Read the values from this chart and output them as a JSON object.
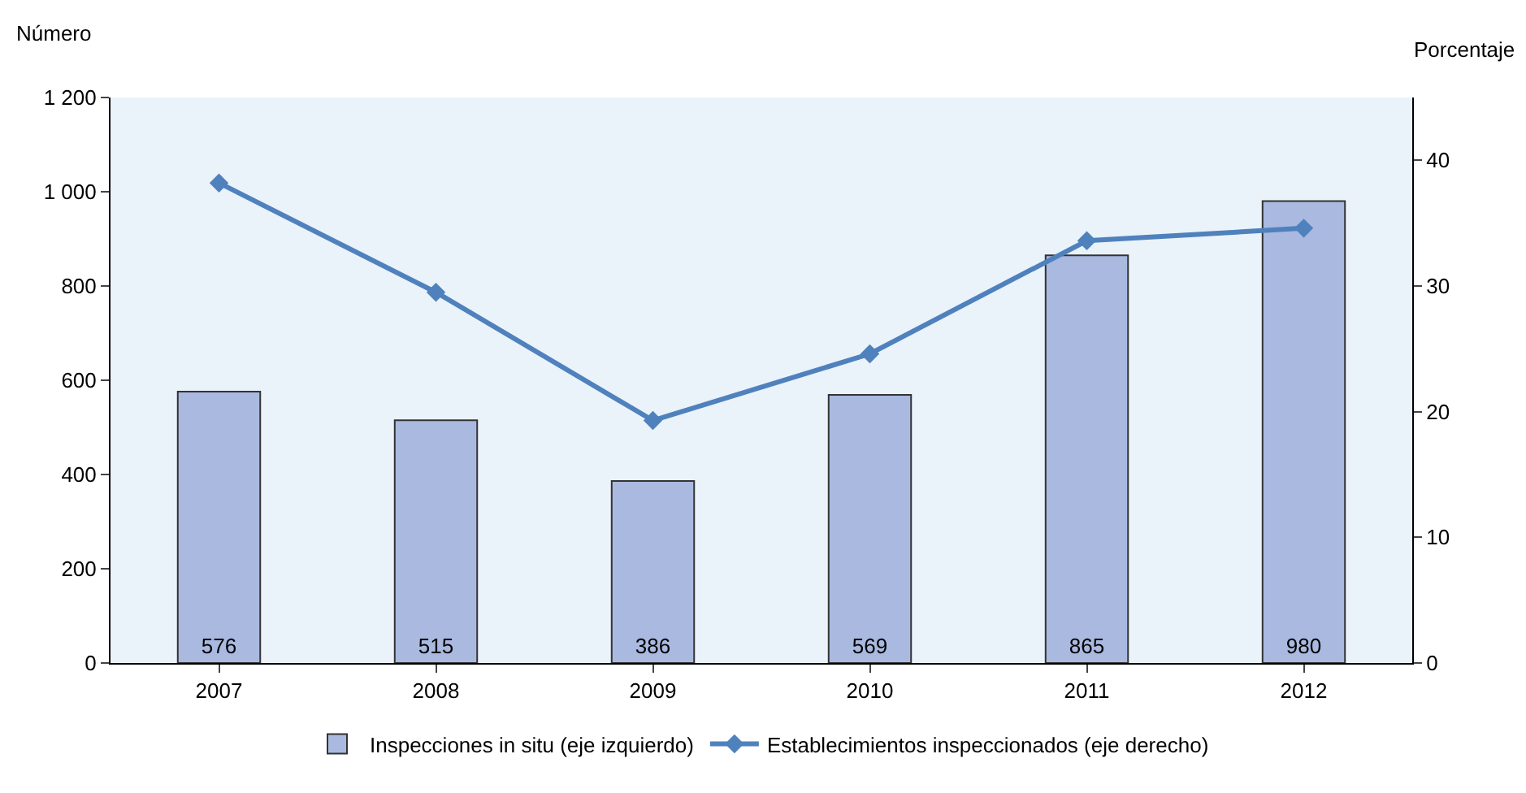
{
  "chart_data": {
    "type": "bar",
    "ylabel": "Número",
    "y2label": "Porcentaje",
    "categories": [
      "2007",
      "2008",
      "2009",
      "2010",
      "2011",
      "2012"
    ],
    "series": [
      {
        "name": "Inspecciones in situ (eje izquierdo)",
        "color": "#a9b9e0",
        "values": [
          576,
          515,
          386,
          569,
          865,
          980
        ],
        "value_labels": [
          "576",
          "515",
          "386",
          "569",
          "865",
          "980"
        ]
      },
      {
        "name": "Establecimientos inspeccionados (eje derecho)",
        "type": "line",
        "axis": "y2",
        "color": "#4f81bd",
        "values": [
          38.2,
          29.5,
          19.3,
          24.6,
          33.6,
          34.6
        ]
      }
    ],
    "marker": "diamond",
    "line_style": "solid",
    "grid": false,
    "legend": "bottom",
    "ylim": [
      0,
      1200
    ],
    "yticks": [
      0,
      {
        "value": 200,
        "label": "200"
      },
      {
        "value": 400,
        "label": "400"
      },
      {
        "value": 600,
        "label": "600"
      },
      {
        "value": 800,
        "label": "800"
      },
      {
        "value": 1000,
        "label": "1 000"
      },
      {
        "value": 1200,
        "label": "1 200"
      }
    ],
    "y2lim": [
      0,
      45
    ],
    "y2ticks": [
      0,
      10,
      20,
      30,
      40
    ]
  }
}
